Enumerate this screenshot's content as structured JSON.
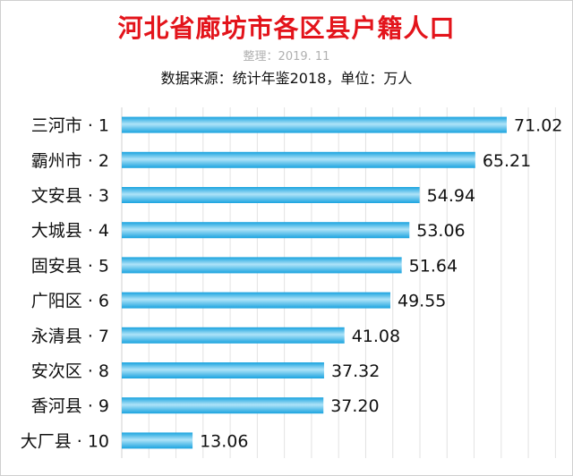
{
  "chart_data": {
    "type": "bar",
    "orientation": "horizontal",
    "title": "河北省廊坊市各区县户籍人口",
    "subtitle": "整理：2019. 11",
    "source": "数据来源：统计年鉴2018，单位：万人",
    "categories": [
      "三河市 · 1",
      "霸州市 · 2",
      "文安县 · 3",
      "大城县 · 4",
      "固安县 · 5",
      "广阳区 · 6",
      "永清县 · 7",
      "安次区 · 8",
      "香河县 · 9",
      "大厂县 · 10"
    ],
    "values": [
      71.02,
      65.21,
      54.94,
      53.06,
      51.64,
      49.55,
      41.08,
      37.32,
      37.2,
      13.06
    ],
    "value_labels": [
      "71.02",
      "65.21",
      "54.94",
      "53.06",
      "51.64",
      "49.55",
      "41.08",
      "37.32",
      "37.20",
      "13.06"
    ],
    "xlim": [
      0,
      80
    ],
    "grid": true,
    "bar_color": "#1aa3df",
    "bar_highlight": "#aee3f8",
    "title_color": "#e3141b"
  }
}
